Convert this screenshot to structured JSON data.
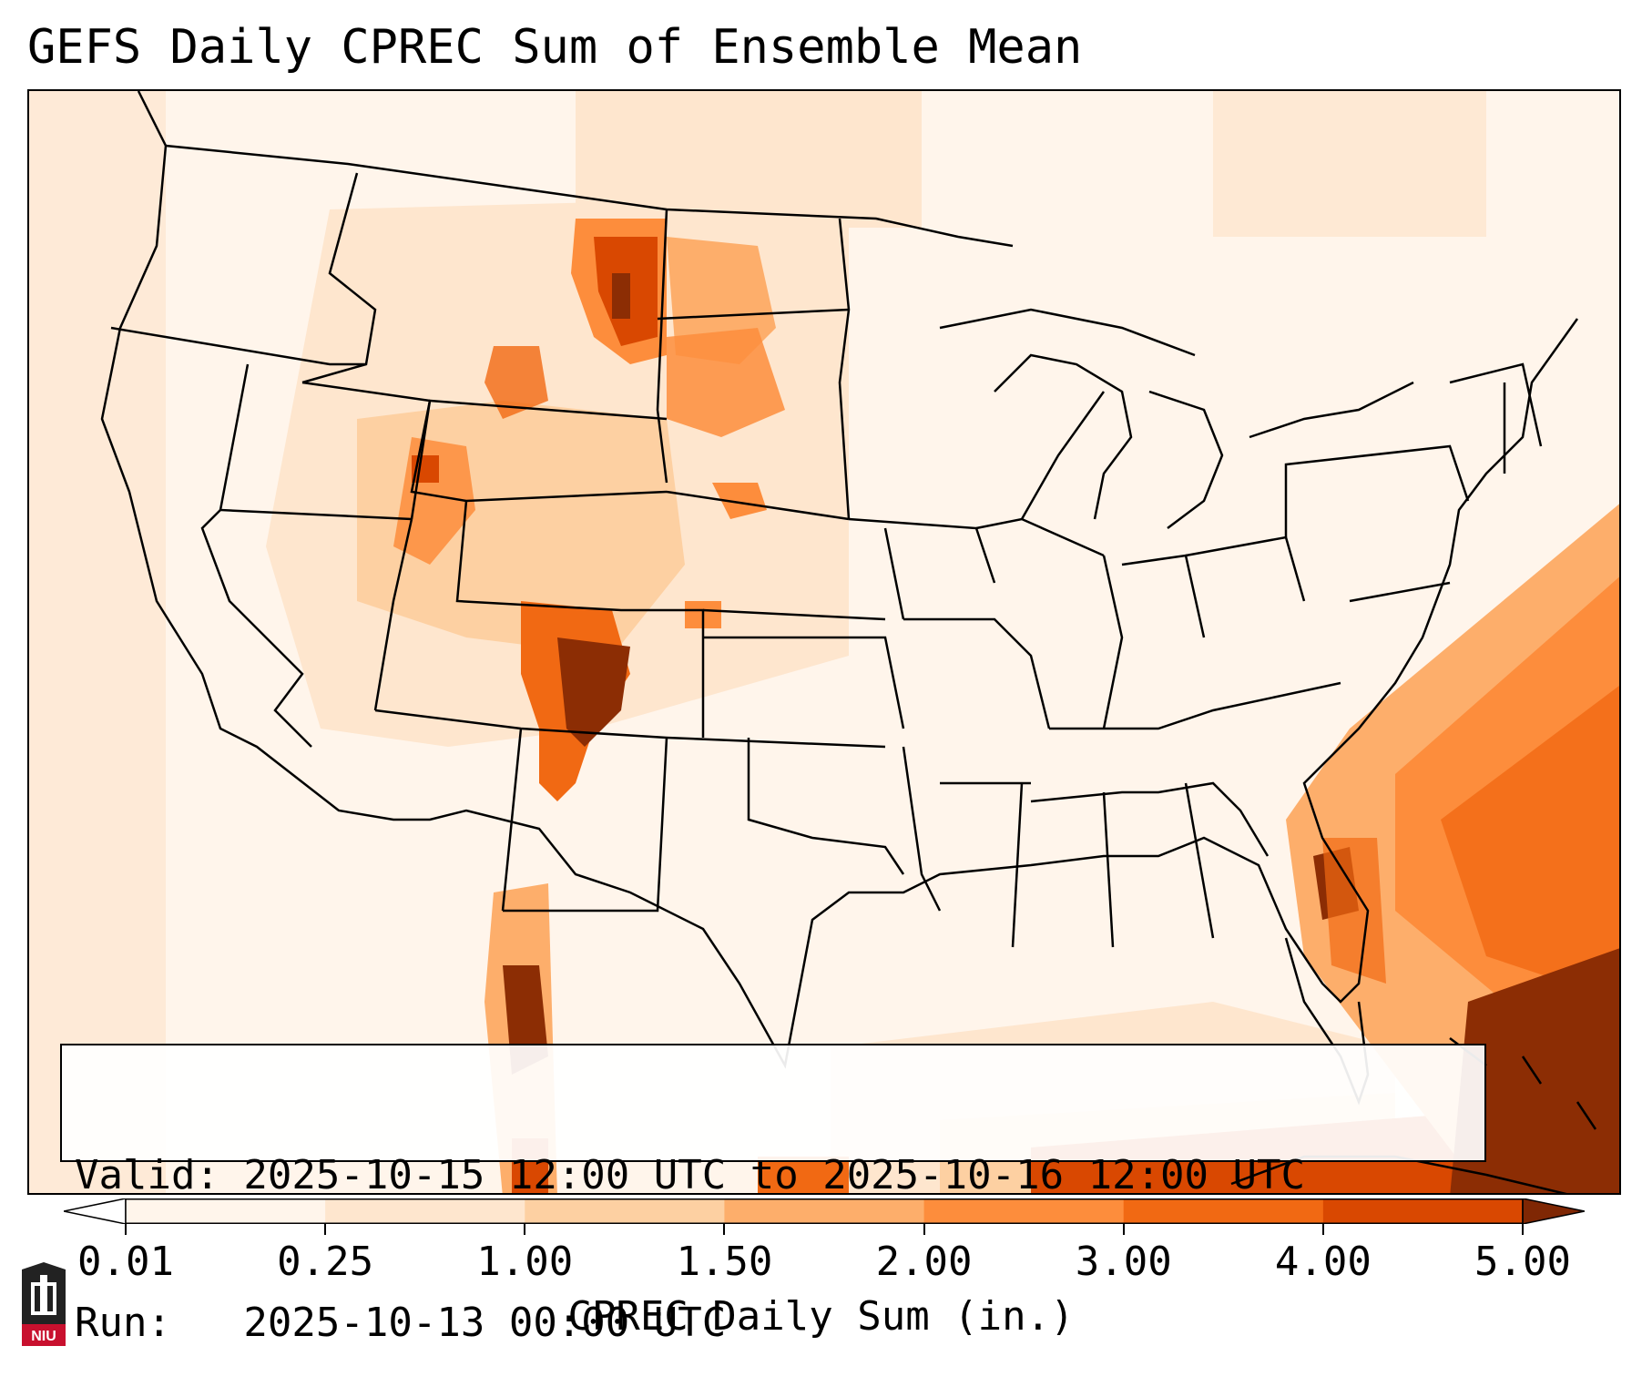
{
  "title": "GEFS Daily CPREC Sum of Ensemble Mean",
  "info": {
    "valid": "Valid: 2025-10-15 12:00 UTC to 2025-10-16 12:00 UTC",
    "run": "Run:   2025-10-13 00:00 UTC"
  },
  "colorbar": {
    "label": "CPREC Daily Sum (in.)",
    "ticks": [
      "0.01",
      "0.25",
      "1.00",
      "1.50",
      "2.00",
      "3.00",
      "4.00",
      "5.00"
    ],
    "colors": [
      "#fff5eb",
      "#fee6ce",
      "#fdd0a2",
      "#fdae6b",
      "#fd8d3c",
      "#f16913",
      "#d94801",
      "#8c2d04"
    ],
    "under_color": "#ffffff",
    "over_color": "#7f2704"
  },
  "logo": {
    "text": "NIU",
    "color": "#c8102e"
  }
}
